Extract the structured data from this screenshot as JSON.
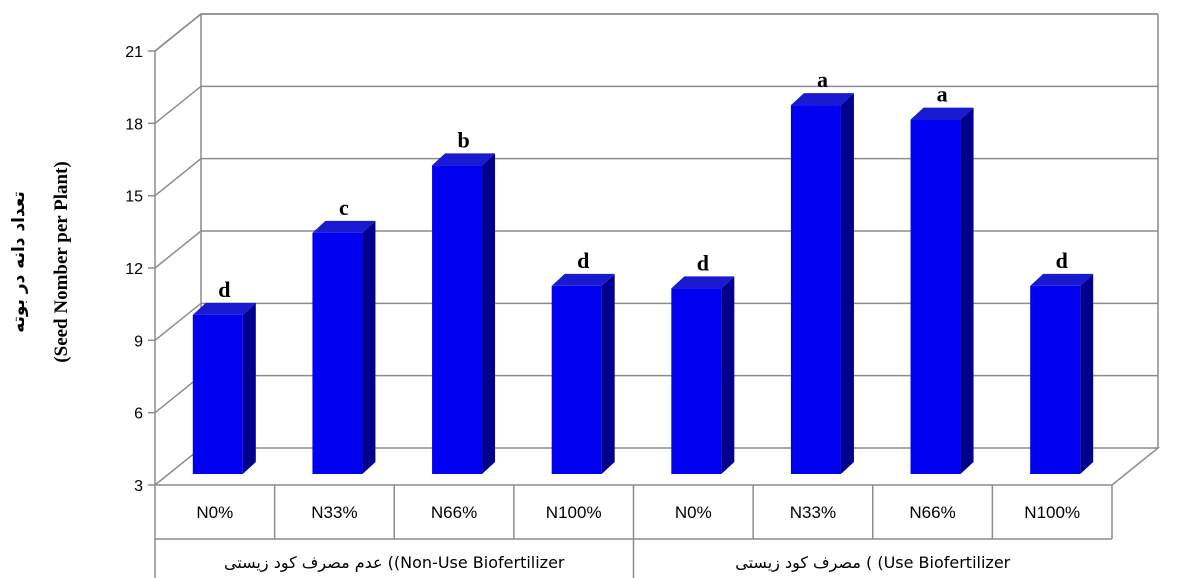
{
  "chart_data": {
    "type": "bar",
    "ylabel": "(Seed Nomber per Plant)",
    "ylabel_fa": "تعداد دانه در بوته",
    "ylim": [
      3,
      21
    ],
    "yticks": [
      "3",
      "6",
      "9",
      "12",
      "15",
      "18",
      "21"
    ],
    "grid": true,
    "categories": [
      "N0%",
      "N33%",
      "N66%",
      "N100%",
      "N0%",
      "N33%",
      "N66%",
      "N100%"
    ],
    "groups": [
      {
        "label": "عدم مصرف کود زیستی ((Non-Use Biofertilizer",
        "span": 4
      },
      {
        "label": "مصرف کود زیستی ( (Use Biofertilizer",
        "span": 4
      }
    ],
    "values": [
      9.6,
      13.0,
      15.8,
      10.8,
      10.7,
      18.3,
      17.7,
      10.8
    ],
    "data_labels": [
      "d",
      "c",
      "b",
      "d",
      "d",
      "a",
      "a",
      "d"
    ],
    "colors": {
      "front": "#0000F0",
      "side": "#00008C",
      "top": "#1A1AD0",
      "grid": "#8C8C8C"
    }
  }
}
